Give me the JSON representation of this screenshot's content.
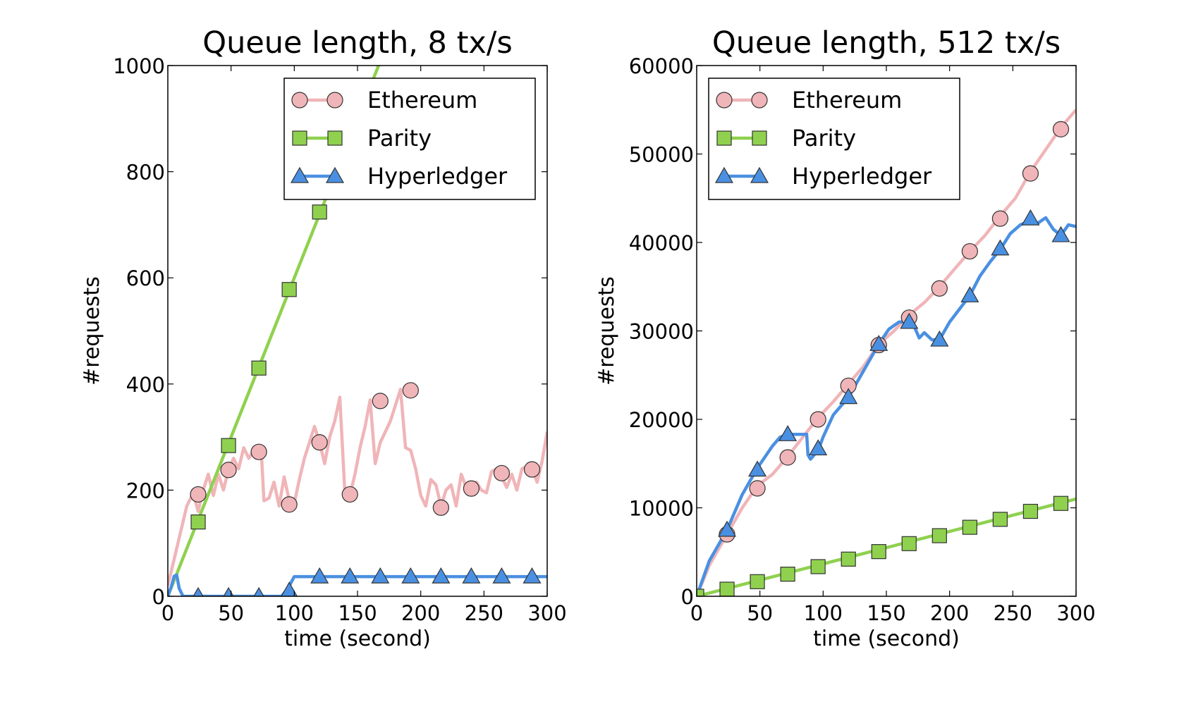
{
  "chart_data": [
    {
      "type": "line",
      "title": "Queue length, 8 tx/s",
      "xlabel": "time (second)",
      "ylabel": "#requests",
      "xlim": [
        0,
        300
      ],
      "ylim": [
        0,
        1000
      ],
      "xticks": [
        0,
        50,
        100,
        150,
        200,
        250,
        300
      ],
      "yticks": [
        0,
        200,
        400,
        600,
        800,
        1000
      ],
      "grid": false,
      "legend_position": "top-right",
      "series": [
        {
          "name": "Ethereum",
          "color": "#f0b5b8",
          "marker": "circle",
          "x": [
            0,
            5,
            10,
            15,
            20,
            24,
            28,
            32,
            36,
            40,
            44,
            48,
            52,
            56,
            60,
            64,
            68,
            72,
            74,
            76,
            80,
            84,
            88,
            92,
            96,
            100,
            104,
            108,
            112,
            116,
            120,
            124,
            128,
            132,
            136,
            140,
            144,
            148,
            152,
            156,
            160,
            164,
            168,
            172,
            176,
            180,
            184,
            188,
            192,
            196,
            200,
            204,
            208,
            212,
            216,
            220,
            224,
            228,
            232,
            236,
            240,
            244,
            248,
            252,
            256,
            260,
            264,
            268,
            272,
            276,
            280,
            284,
            288,
            292,
            296,
            300
          ],
          "y": [
            20,
            70,
            120,
            170,
            195,
            160,
            200,
            230,
            190,
            230,
            200,
            240,
            260,
            240,
            280,
            260,
            275,
            270,
            270,
            180,
            185,
            215,
            170,
            225,
            180,
            175,
            220,
            260,
            290,
            320,
            290,
            250,
            300,
            330,
            375,
            195,
            190,
            230,
            280,
            320,
            370,
            250,
            290,
            310,
            330,
            360,
            390,
            280,
            275,
            240,
            190,
            170,
            220,
            210,
            170,
            200,
            210,
            170,
            230,
            205,
            205,
            215,
            200,
            195,
            235,
            240,
            225,
            205,
            230,
            200,
            240,
            245,
            240,
            215,
            255,
            310
          ],
          "markers_x": [
            24,
            48,
            72,
            96,
            120,
            144,
            168,
            192,
            216,
            240,
            264,
            288
          ],
          "markers_y": [
            192,
            238,
            272,
            173,
            290,
            192,
            368,
            388,
            167,
            203,
            232,
            239
          ]
        },
        {
          "name": "Parity",
          "color": "#8fd14f",
          "marker": "square",
          "x": [
            0,
            180
          ],
          "y": [
            0,
            1080
          ],
          "markers_x": [
            24,
            48,
            72,
            96,
            120
          ],
          "markers_y": [
            140,
            284,
            430,
            578,
            724
          ]
        },
        {
          "name": "Hyperledger",
          "color": "#4a90e2",
          "marker": "triangle",
          "x": [
            0,
            3,
            5,
            7,
            9,
            12,
            20,
            40,
            60,
            80,
            90,
            95,
            100,
            110,
            120,
            150,
            200,
            250,
            300
          ],
          "y": [
            0,
            20,
            38,
            40,
            15,
            0,
            0,
            0,
            0,
            0,
            0,
            15,
            37,
            37,
            37,
            37,
            37,
            37,
            37
          ],
          "markers_x": [
            24,
            48,
            72,
            96,
            120,
            144,
            168,
            192,
            216,
            240,
            264,
            288
          ],
          "markers_y": [
            0,
            0,
            0,
            10,
            37,
            37,
            37,
            37,
            37,
            37,
            37,
            37
          ]
        }
      ]
    },
    {
      "type": "line",
      "title": "Queue length, 512 tx/s",
      "xlabel": "time (second)",
      "ylabel": "#requests",
      "xlim": [
        0,
        300
      ],
      "ylim": [
        0,
        60000
      ],
      "xticks": [
        0,
        50,
        100,
        150,
        200,
        250,
        300
      ],
      "yticks": [
        0,
        10000,
        20000,
        30000,
        40000,
        50000,
        60000
      ],
      "grid": false,
      "legend_position": "top-left",
      "series": [
        {
          "name": "Ethereum",
          "color": "#f0b5b8",
          "marker": "circle",
          "x": [
            0,
            10,
            24,
            36,
            48,
            60,
            72,
            84,
            96,
            108,
            120,
            132,
            144,
            156,
            168,
            180,
            192,
            204,
            216,
            228,
            240,
            252,
            264,
            276,
            288,
            300
          ],
          "y": [
            0,
            3500,
            7000,
            10000,
            12500,
            13800,
            15800,
            18000,
            20200,
            22000,
            24000,
            26000,
            28500,
            30000,
            31800,
            33200,
            35000,
            37000,
            39000,
            40800,
            43000,
            45000,
            48000,
            50500,
            53000,
            55000
          ],
          "markers_x": [
            24,
            48,
            72,
            96,
            120,
            144,
            168,
            192,
            216,
            240,
            264,
            288
          ],
          "markers_y": [
            7000,
            12200,
            15700,
            20000,
            23800,
            28400,
            31500,
            34800,
            39000,
            42700,
            47800,
            52800
          ]
        },
        {
          "name": "Parity",
          "color": "#8fd14f",
          "marker": "square",
          "x": [
            0,
            300
          ],
          "y": [
            0,
            11000
          ],
          "markers_x": [
            0,
            24,
            48,
            72,
            96,
            120,
            144,
            168,
            192,
            216,
            240,
            264,
            288
          ],
          "markers_y": [
            0,
            800,
            1650,
            2500,
            3350,
            4200,
            5050,
            5950,
            6850,
            7800,
            8700,
            9600,
            10500
          ]
        },
        {
          "name": "Hyperledger",
          "color": "#4a90e2",
          "marker": "triangle",
          "x": [
            0,
            10,
            24,
            36,
            48,
            60,
            66,
            72,
            80,
            87,
            88,
            90,
            96,
            100,
            108,
            120,
            132,
            144,
            152,
            160,
            168,
            172,
            176,
            180,
            186,
            192,
            200,
            208,
            216,
            224,
            232,
            240,
            248,
            256,
            264,
            270,
            276,
            282,
            288,
            294,
            300
          ],
          "y": [
            0,
            4000,
            7500,
            11500,
            14500,
            17000,
            18000,
            18300,
            18300,
            18300,
            16000,
            15500,
            16500,
            18000,
            20500,
            22500,
            25500,
            28500,
            30200,
            31000,
            31000,
            30500,
            29200,
            29800,
            29000,
            29000,
            31000,
            32500,
            34000,
            36200,
            37800,
            39200,
            41000,
            42000,
            42500,
            42200,
            42800,
            41500,
            40800,
            42000,
            41800
          ],
          "markers_x": [
            24,
            48,
            72,
            96,
            120,
            144,
            168,
            192,
            216,
            240,
            264,
            288
          ],
          "markers_y": [
            7500,
            14300,
            18300,
            16700,
            22500,
            28500,
            31000,
            29000,
            34000,
            39300,
            42700,
            40800
          ]
        }
      ]
    }
  ]
}
